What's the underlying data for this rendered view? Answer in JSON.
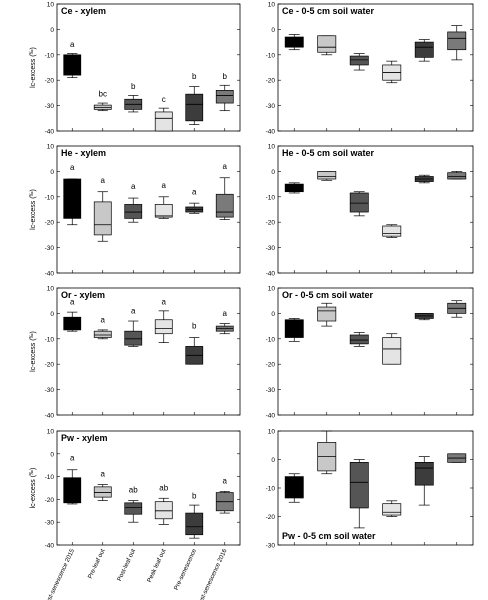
{
  "figure": {
    "x_categories": [
      "Post-senescence 2015",
      "Pre-leaf out",
      "Post-leaf out",
      "Peak leaf out",
      "Pre-senescence",
      "Post-senescence 2016"
    ],
    "y_tick_labels": [
      "10",
      "0",
      "-10",
      "-20",
      "-30",
      "-40"
    ],
    "y_axis_label_prefix": "lc-excess (",
    "y_axis_label_unit": "‰",
    "y_axis_label_suffix": ")"
  },
  "chart_data": [
    {
      "type": "box",
      "title": "Ce - xylem",
      "ylabel": "lc-excess (‰)",
      "ylim": [
        -40,
        10
      ],
      "categories": [
        "Post-senescence 2015",
        "Pre-leaf out",
        "Post-leaf out",
        "Peak leaf out",
        "Pre-senescence",
        "Post-senescence 2016"
      ],
      "boxes": [
        {
          "whisker_low": -19,
          "q1": -18,
          "median": -17,
          "q3": -10,
          "whisker_high": -9.5,
          "color": "#000000"
        },
        {
          "whisker_low": -32,
          "q1": -31.5,
          "median": -30.8,
          "q3": -29.8,
          "whisker_high": -29,
          "color": "#c8c8c8"
        },
        {
          "whisker_low": -32.5,
          "q1": -31.5,
          "median": -29.5,
          "q3": -27.5,
          "whisker_high": -26,
          "color": "#555555"
        },
        {
          "whisker_low": -40,
          "q1": -40,
          "median": -35,
          "q3": -32.5,
          "whisker_high": -31,
          "color": "#e4e4e4"
        },
        {
          "whisker_low": -37.5,
          "q1": -36,
          "median": -29.5,
          "q3": -25.5,
          "whisker_high": -22.5,
          "color": "#3c3c3c"
        },
        {
          "whisker_low": -32,
          "q1": -29,
          "median": -26,
          "q3": -24,
          "whisker_high": -22,
          "color": "#7a7a7a"
        }
      ],
      "letters": [
        "a",
        "bc",
        "b",
        "c",
        "b",
        "b"
      ],
      "letter_heights": [
        -7,
        -26.5,
        -23.5,
        -28.5,
        -19.5,
        -19.5
      ]
    },
    {
      "type": "box",
      "title": "Ce - 0-5 cm soil water",
      "ylim": [
        -40,
        10
      ],
      "categories": [
        "Post-senescence 2015",
        "Pre-leaf out",
        "Post-leaf out",
        "Peak leaf out",
        "Pre-senescence",
        "Post-senescence 2016"
      ],
      "boxes": [
        {
          "whisker_low": -8,
          "q1": -7,
          "median": -4.5,
          "q3": -3,
          "whisker_high": -2,
          "color": "#000000"
        },
        {
          "whisker_low": -10,
          "q1": -9,
          "median": -7,
          "q3": -2.5,
          "whisker_high": -2.5,
          "color": "#c8c8c8"
        },
        {
          "whisker_low": -16,
          "q1": -14,
          "median": -12,
          "q3": -10.5,
          "whisker_high": -9.5,
          "color": "#555555"
        },
        {
          "whisker_low": -21,
          "q1": -20,
          "median": -17,
          "q3": -14,
          "whisker_high": -12.5,
          "color": "#e4e4e4"
        },
        {
          "whisker_low": -12.5,
          "q1": -11,
          "median": -7,
          "q3": -5,
          "whisker_high": -4,
          "color": "#3c3c3c"
        },
        {
          "whisker_low": -12,
          "q1": -8,
          "median": -3.5,
          "q3": -1,
          "whisker_high": 1.5,
          "color": "#7a7a7a"
        }
      ]
    },
    {
      "type": "box",
      "title": "He - xylem",
      "ylabel": "lc-excess (‰)",
      "ylim": [
        -40,
        10
      ],
      "categories": [
        "Post-senescence 2015",
        "Pre-leaf out",
        "Post-leaf out",
        "Peak leaf out",
        "Pre-senescence",
        "Post-senescence 2016"
      ],
      "boxes": [
        {
          "whisker_low": -21,
          "q1": -18.5,
          "median": -14,
          "q3": -3,
          "whisker_high": -3,
          "color": "#000000"
        },
        {
          "whisker_low": -27.5,
          "q1": -25,
          "median": -21,
          "q3": -12,
          "whisker_high": -8,
          "color": "#c8c8c8"
        },
        {
          "whisker_low": -20,
          "q1": -18.5,
          "median": -16,
          "q3": -13,
          "whisker_high": -10.5,
          "color": "#555555"
        },
        {
          "whisker_low": -18.5,
          "q1": -18,
          "median": -17.5,
          "q3": -13,
          "whisker_high": -10,
          "color": "#e4e4e4"
        },
        {
          "whisker_low": -16.5,
          "q1": -16,
          "median": -15,
          "q3": -14,
          "whisker_high": -12.5,
          "color": "#3c3c3c"
        },
        {
          "whisker_low": -19,
          "q1": -18,
          "median": -16,
          "q3": -9,
          "whisker_high": -2.5,
          "color": "#7a7a7a"
        }
      ],
      "letters": [
        "a",
        "a",
        "a",
        "a",
        "a",
        "a"
      ],
      "letter_heights": [
        0.5,
        -4.5,
        -7,
        -6.5,
        -9,
        1
      ]
    },
    {
      "type": "box",
      "title": "He - 0-5 cm soil water",
      "ylim": [
        -40,
        10
      ],
      "categories": [
        "Post-senescence 2015",
        "Pre-leaf out",
        "Post-leaf out",
        "Peak leaf out",
        "Pre-senescence",
        "Post-senescence 2016"
      ],
      "boxes": [
        {
          "whisker_low": -8.5,
          "q1": -8,
          "median": -6.5,
          "q3": -5,
          "whisker_high": -4.5,
          "color": "#000000"
        },
        {
          "whisker_low": -3.5,
          "q1": -3,
          "median": -2,
          "q3": 0,
          "whisker_high": 0,
          "color": "#c8c8c8"
        },
        {
          "whisker_low": -17.5,
          "q1": -16,
          "median": -12.5,
          "q3": -8.5,
          "whisker_high": -8,
          "color": "#555555"
        },
        {
          "whisker_low": -26,
          "q1": -25.5,
          "median": -24.5,
          "q3": -21.5,
          "whisker_high": -21,
          "color": "#e4e4e4"
        },
        {
          "whisker_low": -4.5,
          "q1": -4,
          "median": -3,
          "q3": -2,
          "whisker_high": -1.5,
          "color": "#3c3c3c"
        },
        {
          "whisker_low": -3,
          "q1": -3,
          "median": -2,
          "q3": -0.5,
          "whisker_high": 0,
          "color": "#7a7a7a"
        }
      ]
    },
    {
      "type": "box",
      "title": "Or - xylem",
      "ylabel": "lc-excess (‰)",
      "ylim": [
        -40,
        10
      ],
      "categories": [
        "Post-senescence 2015",
        "Pre-leaf out",
        "Post-leaf out",
        "Peak leaf out",
        "Pre-senescence",
        "Post-senescence 2016"
      ],
      "boxes": [
        {
          "whisker_low": -7,
          "q1": -6.5,
          "median": -4,
          "q3": -1.5,
          "whisker_high": 0.5,
          "color": "#000000"
        },
        {
          "whisker_low": -10,
          "q1": -9.5,
          "median": -8.5,
          "q3": -7,
          "whisker_high": -6.5,
          "color": "#c8c8c8"
        },
        {
          "whisker_low": -13,
          "q1": -12.5,
          "median": -10,
          "q3": -7,
          "whisker_high": -3,
          "color": "#555555"
        },
        {
          "whisker_low": -11.5,
          "q1": -8,
          "median": -6,
          "q3": -2.5,
          "whisker_high": 1,
          "color": "#e4e4e4"
        },
        {
          "whisker_low": -20,
          "q1": -20,
          "median": -16.5,
          "q3": -13,
          "whisker_high": -9.5,
          "color": "#3c3c3c"
        },
        {
          "whisker_low": -8,
          "q1": -7,
          "median": -6,
          "q3": -5,
          "whisker_high": -4,
          "color": "#7a7a7a"
        }
      ],
      "letters": [
        "a",
        "a",
        "a",
        "a",
        "b",
        "a"
      ],
      "letter_heights": [
        3.5,
        -3.5,
        0,
        3.5,
        -6,
        -1
      ]
    },
    {
      "type": "box",
      "title": "Or - 0-5 cm soil water",
      "ylim": [
        -40,
        10
      ],
      "categories": [
        "Post-senescence 2015",
        "Pre-leaf out",
        "Post-leaf out",
        "Peak leaf out",
        "Pre-senescence",
        "Post-senescence 2016"
      ],
      "boxes": [
        {
          "whisker_low": -11,
          "q1": -9.5,
          "median": -6.5,
          "q3": -2.5,
          "whisker_high": -2,
          "color": "#000000"
        },
        {
          "whisker_low": -5,
          "q1": -3,
          "median": 1,
          "q3": 2.5,
          "whisker_high": 4,
          "color": "#c8c8c8"
        },
        {
          "whisker_low": -13,
          "q1": -12,
          "median": -10.5,
          "q3": -8.5,
          "whisker_high": -7.5,
          "color": "#555555"
        },
        {
          "whisker_low": -20,
          "q1": -20,
          "median": -14,
          "q3": -9.5,
          "whisker_high": -8,
          "color": "#e4e4e4"
        },
        {
          "whisker_low": -2.5,
          "q1": -2,
          "median": -1,
          "q3": 0,
          "whisker_high": 0,
          "color": "#3c3c3c"
        },
        {
          "whisker_low": -1.5,
          "q1": 0,
          "median": 2,
          "q3": 4,
          "whisker_high": 5,
          "color": "#7a7a7a"
        }
      ]
    },
    {
      "type": "box",
      "title": "Pw - xylem",
      "ylabel": "lc-excess (‰)",
      "ylim": [
        -40,
        10
      ],
      "categories": [
        "Post-senescence 2015",
        "Pre-leaf out",
        "Post-leaf out",
        "Peak leaf out",
        "Pre-senescence",
        "Post-senescence 2016"
      ],
      "boxes": [
        {
          "whisker_low": -22,
          "q1": -21.5,
          "median": -15,
          "q3": -10.5,
          "whisker_high": -7,
          "color": "#000000"
        },
        {
          "whisker_low": -20.5,
          "q1": -19,
          "median": -17,
          "q3": -14.5,
          "whisker_high": -13.5,
          "color": "#c8c8c8"
        },
        {
          "whisker_low": -30,
          "q1": -26.5,
          "median": -23.5,
          "q3": -21.5,
          "whisker_high": -20.5,
          "color": "#555555"
        },
        {
          "whisker_low": -31,
          "q1": -28.5,
          "median": -25,
          "q3": -21,
          "whisker_high": -19.5,
          "color": "#e4e4e4"
        },
        {
          "whisker_low": -37,
          "q1": -35.5,
          "median": -32,
          "q3": -26,
          "whisker_high": -22.5,
          "color": "#3c3c3c"
        },
        {
          "whisker_low": -26,
          "q1": -25,
          "median": -21,
          "q3": -17,
          "whisker_high": -16.5,
          "color": "#7a7a7a"
        }
      ],
      "letters": [
        "a",
        "a",
        "ab",
        "ab",
        "b",
        "a"
      ],
      "letter_heights": [
        -3,
        -10,
        -17,
        -16,
        -19.5,
        -13
      ]
    },
    {
      "type": "box",
      "title": "Pw - 0-5 cm soil water",
      "ylim": [
        -30,
        10
      ],
      "categories": [
        "Post-senescence 2015",
        "Pre-leaf out",
        "Post-leaf out",
        "Peak leaf out",
        "Pre-senescence",
        "Post-senescence 2016"
      ],
      "boxes": [
        {
          "whisker_low": -15,
          "q1": -13.5,
          "median": -12.5,
          "q3": -6,
          "whisker_high": -5,
          "color": "#000000"
        },
        {
          "whisker_low": -5,
          "q1": -4,
          "median": 1,
          "q3": 6,
          "whisker_high": 10,
          "color": "#c8c8c8"
        },
        {
          "whisker_low": -24,
          "q1": -17,
          "median": -8,
          "q3": -1,
          "whisker_high": 0,
          "color": "#555555"
        },
        {
          "whisker_low": -20,
          "q1": -19.5,
          "median": -18.5,
          "q3": -15.5,
          "whisker_high": -14.5,
          "color": "#e4e4e4"
        },
        {
          "whisker_low": -16,
          "q1": -9,
          "median": -3,
          "q3": -1,
          "whisker_high": 1,
          "color": "#3c3c3c"
        },
        {
          "whisker_low": -1,
          "q1": -1,
          "median": 0.5,
          "q3": 2,
          "whisker_high": 2,
          "color": "#7a7a7a"
        }
      ]
    }
  ]
}
